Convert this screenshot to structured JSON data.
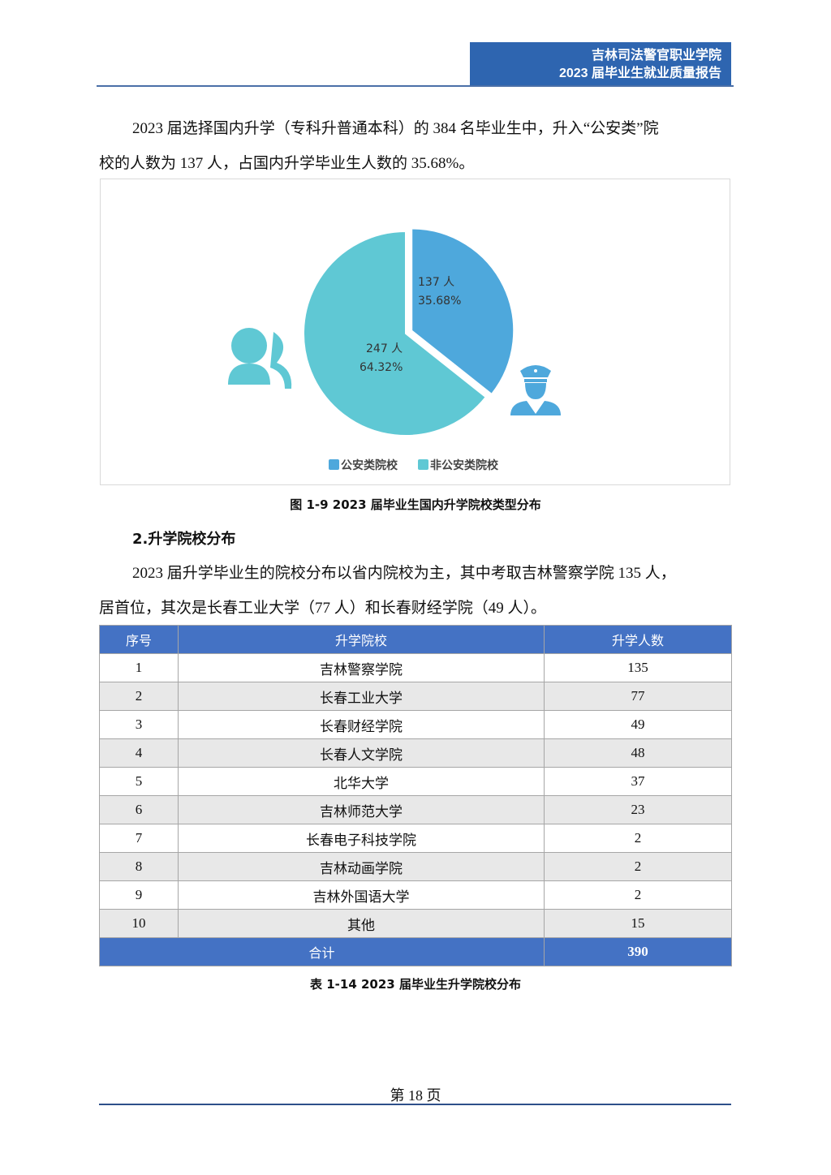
{
  "header": {
    "line1": "吉林司法警官职业学院",
    "line2": "2023 届毕业生就业质量报告"
  },
  "para1": {
    "line1": "2023 届选择国内升学（专科升普通本科）的 384 名毕业生中，升入“公安类”院",
    "line2": "校的人数为 137 人，占国内升学毕业生人数的 35.68%。"
  },
  "chart_data": {
    "type": "pie",
    "slices": [
      {
        "name": "公安类院校",
        "value": 137,
        "value_label": "137 人",
        "percent_label": "35.68%",
        "color": "#4ea8dc"
      },
      {
        "name": "非公安类院校",
        "value": 247,
        "value_label": "247 人",
        "percent_label": "64.32%",
        "color": "#5fc8d4"
      }
    ],
    "legend": "bottom",
    "icons": [
      "people-icon",
      "police-officer-icon"
    ]
  },
  "figure_caption": "图 1-9 2023 届毕业生国内升学院校类型分布",
  "section_title": "2.升学院校分布",
  "para2": {
    "line1": "2023 届升学毕业生的院校分布以省内院校为主，其中考取吉林警察学院 135 人，",
    "line2": "居首位，其次是长春工业大学（77 人）和长春财经学院（49 人）。"
  },
  "table": {
    "headers": [
      "序号",
      "升学院校",
      "升学人数"
    ],
    "rows": [
      [
        "1",
        "吉林警察学院",
        "135"
      ],
      [
        "2",
        "长春工业大学",
        "77"
      ],
      [
        "3",
        "长春财经学院",
        "49"
      ],
      [
        "4",
        "长春人文学院",
        "48"
      ],
      [
        "5",
        "北华大学",
        "37"
      ],
      [
        "6",
        "吉林师范大学",
        "23"
      ],
      [
        "7",
        "长春电子科技学院",
        "2"
      ],
      [
        "8",
        "吉林动画学院",
        "2"
      ],
      [
        "9",
        "吉林外国语大学",
        "2"
      ],
      [
        "10",
        "其他",
        "15"
      ]
    ],
    "total_label": "合计",
    "total_value": "390"
  },
  "table_caption": "表 1-14 2023 届毕业生升学院校分布",
  "footer": "第 18 页"
}
